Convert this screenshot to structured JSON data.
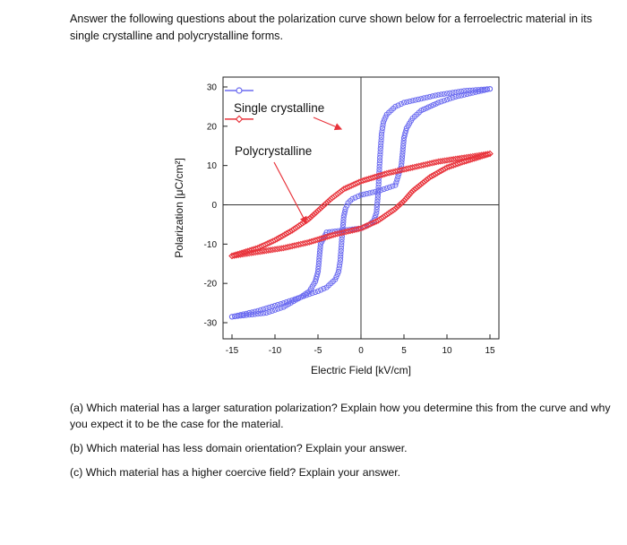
{
  "intro": "Answer the following questions about the polarization curve shown below for a ferroelectric material in its single crystalline and polycrystalline forms.",
  "questions": [
    "(a) Which material has a larger saturation polarization? Explain how you determine this from the curve and why you expect it to be the case for the material.",
    "(b) Which material has less domain orientation? Explain your answer.",
    "(c) Which material has a higher coercive field? Explain your answer."
  ],
  "chart_data": {
    "type": "line",
    "xlabel": "Electric Field [kV/cm]",
    "ylabel": "Polarization [μC/cm²]",
    "xlim": [
      -15,
      15
    ],
    "ylim": [
      -30,
      30
    ],
    "xticks": [
      -15,
      -10,
      -5,
      0,
      5,
      10,
      15
    ],
    "yticks": [
      30,
      20,
      10,
      0,
      -10,
      -20,
      -30
    ],
    "grid": false,
    "legend_position": "top-left",
    "series": [
      {
        "name": "Single crystalline",
        "color": "#6b6bf0",
        "marker": "open circle",
        "branch_increasing": {
          "x": [
            -15,
            -12,
            -9,
            -7,
            -5,
            -4,
            -3,
            -2.6,
            -2.4,
            -2.2,
            -2,
            -1.8,
            -1.5,
            -1,
            0,
            2,
            4,
            4.7,
            5,
            5.3,
            6,
            7,
            9,
            11,
            13,
            15
          ],
          "y": [
            -28.5,
            -27,
            -25,
            -23.5,
            -22,
            -21,
            -19,
            -17,
            -14,
            -8,
            -3,
            -1,
            0.5,
            1.5,
            2.5,
            3.5,
            5,
            10,
            17,
            19.5,
            22,
            24,
            26,
            27.5,
            28.5,
            29.5
          ]
        },
        "branch_decreasing": {
          "x": [
            15,
            12,
            9,
            7,
            5,
            4,
            3,
            2.6,
            2.4,
            2.2,
            2,
            1.8,
            1.5,
            1,
            0,
            -2,
            -4,
            -4.7,
            -5,
            -5.3,
            -6,
            -7,
            -9,
            -11,
            -13,
            -15
          ],
          "y": [
            29.5,
            29,
            28,
            27,
            26,
            25,
            23,
            21,
            18,
            12,
            3,
            -2,
            -4,
            -5,
            -6,
            -6.5,
            -7,
            -10,
            -17,
            -19.5,
            -22,
            -23.5,
            -26,
            -27.5,
            -28,
            -28.5
          ]
        }
      },
      {
        "name": "Polycrystalline",
        "color": "#e8333b",
        "marker": "open diamond",
        "branch_increasing": {
          "x": [
            -15,
            -12,
            -9,
            -6,
            -3,
            0,
            2,
            4,
            5,
            6,
            8,
            10,
            12,
            15
          ],
          "y": [
            -13,
            -12,
            -11,
            -9.5,
            -7.5,
            -6,
            -4,
            -1,
            1,
            3.5,
            7,
            9.5,
            11,
            13
          ]
        },
        "branch_decreasing": {
          "x": [
            15,
            12,
            9,
            6,
            3,
            0,
            -2,
            -3.5,
            -5,
            -6,
            -8,
            -10,
            -12,
            -15
          ],
          "y": [
            13,
            12,
            11,
            9.5,
            8,
            6,
            4,
            1.5,
            -1.5,
            -3.5,
            -6.5,
            -9,
            -11,
            -13
          ]
        }
      }
    ],
    "annotations": [
      "Single crystalline",
      "Polycrystalline"
    ]
  }
}
